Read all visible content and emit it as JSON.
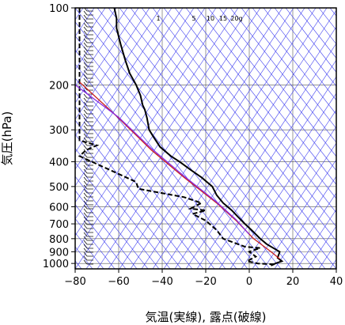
{
  "chart_data": {
    "type": "skew-t",
    "xlabel": "気温(実線), 露点(破線)",
    "ylabel": "気圧(hPa)",
    "xlim": [
      -80,
      40
    ],
    "ylim": [
      1050,
      100
    ],
    "y_scale": "log",
    "x_ticks": [
      "−80",
      "−60",
      "−40",
      "−20",
      "0",
      "20",
      "40"
    ],
    "x_tick_values": [
      -80,
      -60,
      -40,
      -20,
      0,
      20,
      40
    ],
    "y_ticks": [
      "100",
      "200",
      "300",
      "400",
      "500",
      "600",
      "700",
      "800",
      "900",
      "1000"
    ],
    "y_tick_values": [
      100,
      200,
      300,
      400,
      500,
      600,
      700,
      800,
      900,
      1000
    ],
    "mixing_ratio_labels": [
      "1",
      "5",
      "10",
      "15",
      "20g"
    ],
    "grid": true,
    "series": [
      {
        "style": "solid",
        "color": "#000000",
        "points": [
          [
            -62,
            100
          ],
          [
            -61,
            110
          ],
          [
            -61,
            120
          ],
          [
            -59,
            140
          ],
          [
            -57,
            160
          ],
          [
            -55,
            180
          ],
          [
            -52,
            200
          ],
          [
            -50,
            220
          ],
          [
            -49,
            240
          ],
          [
            -48,
            250
          ],
          [
            -47,
            270
          ],
          [
            -46,
            300
          ],
          [
            -44,
            320
          ],
          [
            -41,
            350
          ],
          [
            -36,
            380
          ],
          [
            -32,
            400
          ],
          [
            -27,
            430
          ],
          [
            -22,
            460
          ],
          [
            -17,
            500
          ],
          [
            -15,
            540
          ],
          [
            -12,
            580
          ],
          [
            -8,
            620
          ],
          [
            -5,
            660
          ],
          [
            -2,
            700
          ],
          [
            1,
            740
          ],
          [
            5,
            800
          ],
          [
            8,
            840
          ],
          [
            14,
            900
          ],
          [
            13,
            950
          ],
          [
            15,
            980
          ],
          [
            12,
            1000
          ],
          [
            10,
            1020
          ]
        ]
      },
      {
        "style": "dashed",
        "color": "#000000",
        "points": [
          [
            -78,
            100
          ],
          [
            -78,
            150
          ],
          [
            -78,
            200
          ],
          [
            -78,
            250
          ],
          [
            -78,
            300
          ],
          [
            -78,
            330
          ],
          [
            -70,
            345
          ],
          [
            -75,
            360
          ],
          [
            -78,
            380
          ],
          [
            -52,
            480
          ],
          [
            -51,
            510
          ],
          [
            -30,
            550
          ],
          [
            -22,
            580
          ],
          [
            -27,
            610
          ],
          [
            -20,
            620
          ],
          [
            -26,
            640
          ],
          [
            -20,
            680
          ],
          [
            -15,
            740
          ],
          [
            -12,
            800
          ],
          [
            -2,
            860
          ],
          [
            5,
            870
          ],
          [
            0,
            900
          ],
          [
            3,
            940
          ],
          [
            -1,
            980
          ],
          [
            4,
            1000
          ],
          [
            12,
            1010
          ]
        ]
      },
      {
        "style": "solid",
        "color": "#c81e1e",
        "points": [
          [
            -78,
            195
          ],
          [
            -60,
            270
          ],
          [
            -45,
            360
          ],
          [
            -30,
            460
          ],
          [
            -15,
            580
          ],
          [
            -6,
            680
          ],
          [
            2,
            800
          ],
          [
            10,
            900
          ],
          [
            14,
            960
          ]
        ]
      },
      {
        "style": "solid",
        "color": "#8a2be2",
        "points": [
          [
            -80,
            200
          ],
          [
            -60,
            268
          ],
          [
            -45,
            355
          ],
          [
            -30,
            455
          ],
          [
            -15,
            575
          ],
          [
            -6,
            675
          ],
          [
            0,
            770
          ]
        ]
      }
    ],
    "wind_barbs": "column of wind barbs at left edge from 1000 to 100 hPa"
  }
}
